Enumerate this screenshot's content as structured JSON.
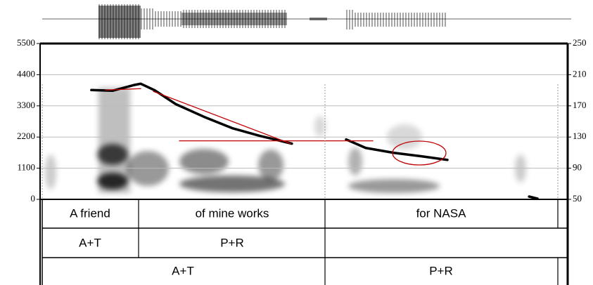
{
  "chart_data": {
    "type": "line",
    "ylim": [
      0,
      5500
    ],
    "yticks": [
      0,
      1100,
      2200,
      3300,
      4400,
      5500
    ],
    "y2lim": [
      50,
      250
    ],
    "y2ticks": [
      50,
      90,
      130,
      170,
      210,
      250
    ],
    "xlim": [
      0,
      2.5
    ],
    "grid": true,
    "x": [
      0.243,
      0.343,
      0.443,
      0.477,
      0.543,
      0.643,
      0.777,
      0.91,
      1.043,
      1.193,
      null,
      1.45,
      1.543,
      1.677,
      1.81,
      1.93,
      null,
      2.317,
      2.357
    ],
    "series": [
      {
        "color": "#000000",
        "axis": "y2",
        "width": 3.5,
        "values": [
          190.3,
          189.4,
          196.6,
          198.4,
          190,
          172.2,
          155.9,
          141.4,
          131.4,
          121.5,
          null,
          126.9,
          116,
          109.7,
          105.2,
          100.7,
          null,
          53.6,
          50.9
        ]
      },
      {
        "color": "#c00000",
        "axis": "y2",
        "width": 1.3,
        "x": [
          0.31,
          0.477,
          null,
          0.537,
          1.187,
          null,
          0.66,
          1.577
        ],
        "values": [
          190.3,
          192.1,
          null,
          188.5,
          121.5,
          null,
          125.1,
          125.1
        ]
      }
    ],
    "tiers": [
      [
        "A friend",
        "of  mine works",
        "for NASA"
      ],
      [
        "A+T",
        "P+R"
      ],
      [
        "A+T",
        "P+R"
      ]
    ]
  }
}
